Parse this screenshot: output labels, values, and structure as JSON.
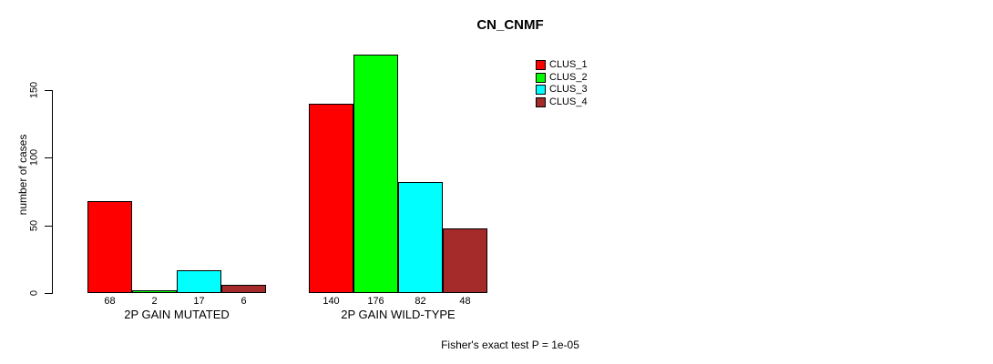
{
  "title": "CN_CNMF",
  "footer_annotation": "Fisher's exact test P = 1e-05",
  "colors": {
    "background": "#ffffff",
    "axis": "#000000",
    "clus_1": "#ff0000",
    "clus_2": "#00ff00",
    "clus_3": "#00ffff",
    "clus_4": "#a52a2a"
  },
  "chart_data": {
    "type": "bar",
    "title": "CN_CNMF",
    "xlabel": "",
    "ylabel": "number of cases",
    "ylim": [
      0,
      176
    ],
    "yticks": [
      0,
      50,
      100,
      150
    ],
    "grid": false,
    "legend_position": "top-right",
    "categories": [
      "2P GAIN MUTATED",
      "2P GAIN WILD-TYPE"
    ],
    "series": [
      {
        "name": "CLUS_1",
        "color": "#ff0000",
        "values": [
          68,
          140
        ]
      },
      {
        "name": "CLUS_2",
        "color": "#00ff00",
        "values": [
          2,
          176
        ]
      },
      {
        "name": "CLUS_3",
        "color": "#00ffff",
        "values": [
          17,
          82
        ]
      },
      {
        "name": "CLUS_4",
        "color": "#a52a2a",
        "values": [
          6,
          48
        ]
      }
    ],
    "bar_value_labels": [
      [
        68,
        2,
        17,
        6
      ],
      [
        140,
        176,
        82,
        48
      ]
    ],
    "annotation": "Fisher's exact test P = 1e-05"
  }
}
